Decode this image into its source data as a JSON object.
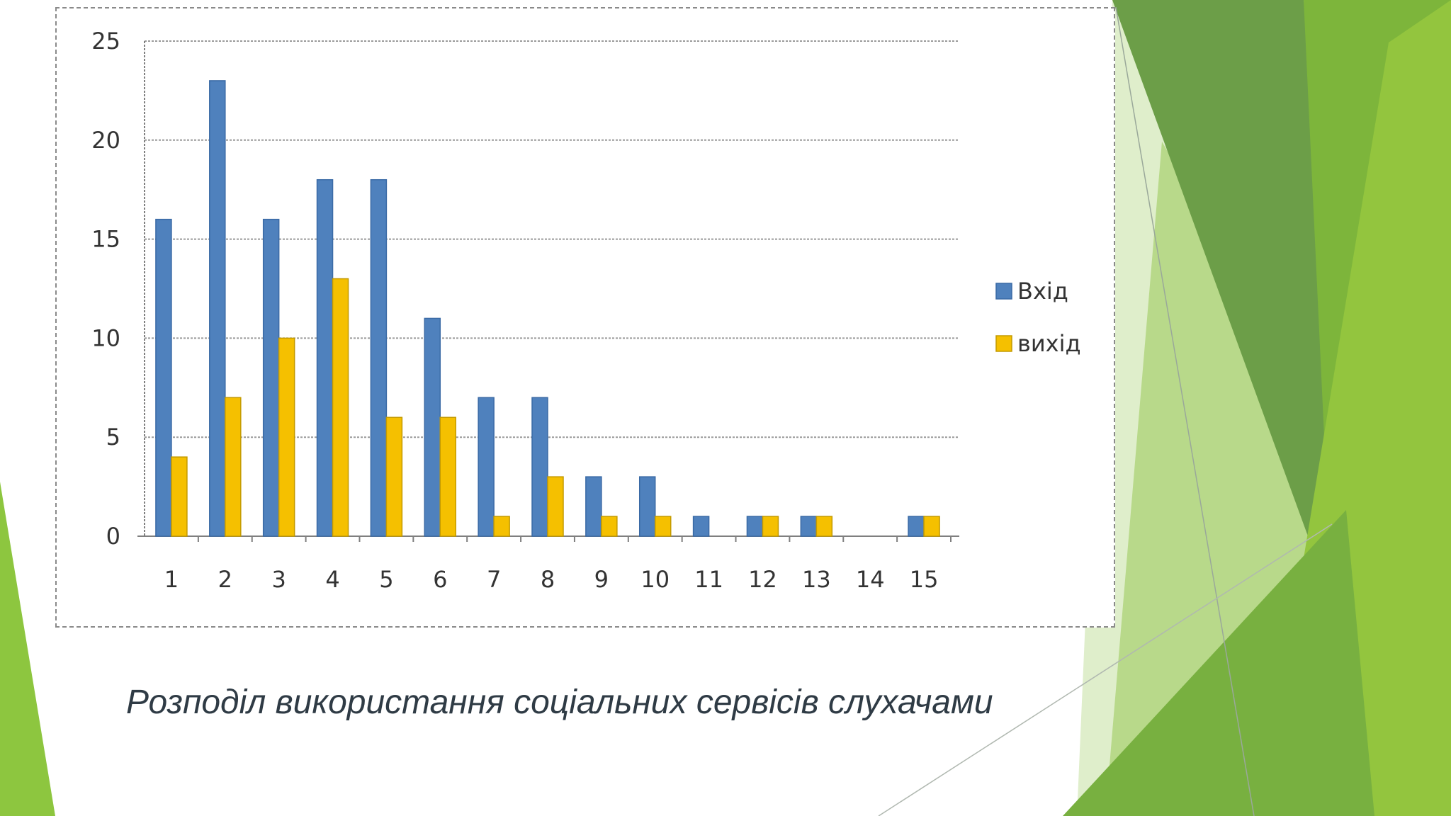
{
  "caption": "Розподіл використання соціальних сервісів слухачами",
  "colors": {
    "series_in": "#4f81bd",
    "series_out": "#f5c000",
    "grid": "#9a9a9a",
    "axis": "#7f7f7f"
  },
  "chart_data": {
    "type": "bar",
    "title": "",
    "xlabel": "",
    "ylabel": "",
    "ylim": [
      0,
      25
    ],
    "yticks": [
      0,
      5,
      10,
      15,
      20,
      25
    ],
    "grid": true,
    "legend_position": "right",
    "categories": [
      "1",
      "2",
      "3",
      "4",
      "5",
      "6",
      "7",
      "8",
      "9",
      "10",
      "11",
      "12",
      "13",
      "14",
      "15"
    ],
    "series": [
      {
        "name": "Вхід",
        "color": "#4f81bd",
        "values": [
          16,
          23,
          16,
          18,
          18,
          11,
          7,
          7,
          3,
          3,
          1,
          1,
          1,
          0,
          1
        ]
      },
      {
        "name": "вихід",
        "color": "#f5c000",
        "values": [
          4,
          7,
          10,
          13,
          6,
          6,
          1,
          3,
          1,
          1,
          0,
          1,
          1,
          0,
          1
        ]
      }
    ]
  }
}
